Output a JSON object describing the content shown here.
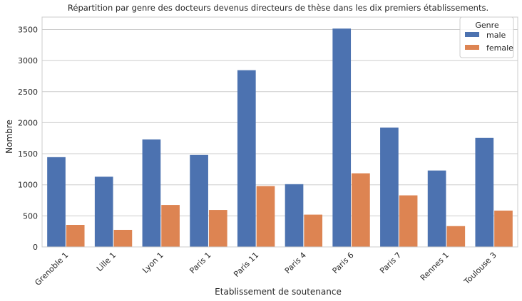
{
  "chart_data": {
    "type": "bar",
    "title": "Répartition par genre des docteurs devenus directeurs de thèse dans les dix premiers établissements.",
    "xlabel": "Etablissement de soutenance",
    "ylabel": "Nombre",
    "categories": [
      "Grenoble 1",
      "Lille 1",
      "Lyon 1",
      "Paris 1",
      "Paris 11",
      "Paris 4",
      "Paris 6",
      "Paris 7",
      "Rennes 1",
      "Toulouse 3"
    ],
    "series": [
      {
        "name": "male",
        "color": "#4c72b0",
        "values": [
          1445,
          1130,
          1730,
          1480,
          2845,
          1010,
          3515,
          1920,
          1230,
          1755
        ]
      },
      {
        "name": "female",
        "color": "#dd8452",
        "values": [
          355,
          275,
          675,
          595,
          980,
          520,
          1185,
          830,
          335,
          585
        ]
      }
    ],
    "ylim": [
      0,
      3700
    ],
    "yticks": [
      0,
      500,
      1000,
      1500,
      2000,
      2500,
      3000,
      3500
    ],
    "grid": true,
    "legend": {
      "title": "Genre",
      "position": "top-right"
    }
  }
}
